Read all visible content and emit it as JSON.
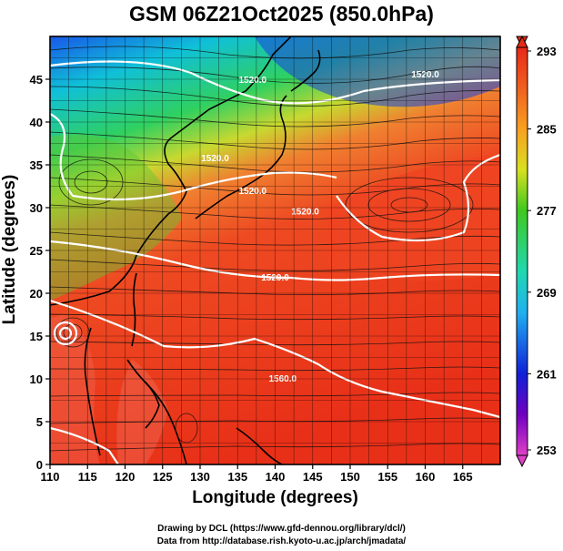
{
  "title": "GSM 06Z21Oct2025 (850.0hPa)",
  "credits": {
    "line1": "Drawing by DCL (https://www.gfd-dennou.org/library/dcl/)",
    "line2": "Data from http://database.rish.kyoto-u.ac.jp/arch/jmadata/"
  },
  "chart_data": {
    "type": "heatmap",
    "title": "GSM 06Z21Oct2025 (850.0hPa)",
    "xlabel": "Longitude (degrees)",
    "ylabel": "Latitude  (degrees)",
    "xlim": [
      110,
      170
    ],
    "ylim": [
      0,
      50
    ],
    "x_ticks": [
      110,
      115,
      120,
      125,
      130,
      135,
      140,
      145,
      150,
      155,
      160,
      165
    ],
    "y_ticks": [
      0,
      5,
      10,
      15,
      20,
      25,
      30,
      35,
      40,
      45
    ],
    "grid": true,
    "colorbar": {
      "min": 253,
      "max": 293,
      "ticks": [
        253,
        261,
        269,
        277,
        285,
        293
      ]
    },
    "contour_labels": [
      "1520.0",
      "1520.0",
      "1520.0",
      "1520.0",
      "1520.0",
      "1520.0",
      "1560.0"
    ],
    "colors": {
      "warm": "#ee3a1c",
      "cool": "#10c0d8",
      "cold": "#2040e0",
      "contour": "#ffffff"
    }
  }
}
